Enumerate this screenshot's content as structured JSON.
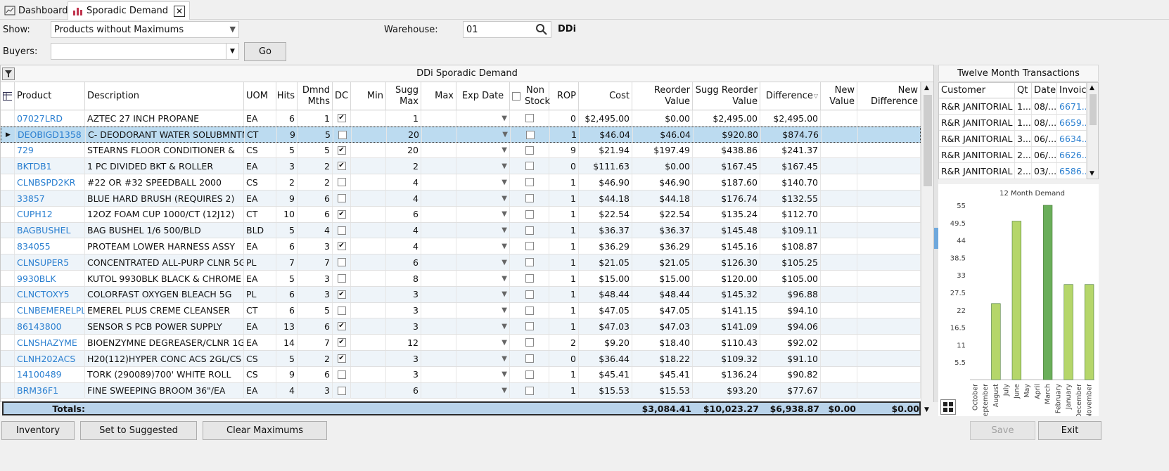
{
  "tabs": [
    {
      "label": "Dashboard",
      "icon": "dashboard-icon"
    },
    {
      "label": "Sporadic Demand",
      "icon": "bar-chart-icon"
    }
  ],
  "filters": {
    "show_label": "Show:",
    "show_value": "Products without Maximums",
    "buyers_label": "Buyers:",
    "buyers_value": "",
    "go_label": "Go",
    "warehouse_label": "Warehouse:",
    "warehouse_value": "01",
    "company": "DDi"
  },
  "grid": {
    "title": "DDi Sporadic Demand",
    "headers": [
      "Product",
      "Description",
      "UOM",
      "Hits",
      "Dmnd Mths",
      "DC",
      "Min",
      "Sugg Max",
      "Max",
      "Exp Date",
      "Non Stock",
      "ROP",
      "Cost",
      "Reorder Value",
      "Sugg Reorder Value",
      "Difference",
      "New Value",
      "New Difference"
    ],
    "rows": [
      {
        "product": "07027LRD",
        "desc": "AZTEC 27 INCH PROPANE",
        "uom": "EA",
        "hits": "6",
        "mths": "1",
        "dc": true,
        "min": "",
        "sugg": "1",
        "max": "",
        "rop": "0",
        "cost": "$2,495.00",
        "reorder": "$0.00",
        "sugg_reorder": "$2,495.00",
        "diff": "$2,495.00"
      },
      {
        "product": "DEOBIGD1358",
        "desc": "C- DEODORANT WATER SOLUBMNTN",
        "uom": "CT",
        "hits": "9",
        "mths": "5",
        "dc": false,
        "min": "",
        "sugg": "20",
        "max": "",
        "rop": "1",
        "cost": "$46.04",
        "reorder": "$46.04",
        "sugg_reorder": "$920.80",
        "diff": "$874.76"
      },
      {
        "product": "729",
        "desc": "STEARNS FLOOR CONDITIONER &",
        "uom": "CS",
        "hits": "5",
        "mths": "5",
        "dc": true,
        "min": "",
        "sugg": "20",
        "max": "",
        "rop": "9",
        "cost": "$21.94",
        "reorder": "$197.49",
        "sugg_reorder": "$438.86",
        "diff": "$241.37"
      },
      {
        "product": "BKTDB1",
        "desc": "1 PC DIVIDED BKT & ROLLER",
        "uom": "EA",
        "hits": "3",
        "mths": "2",
        "dc": true,
        "min": "",
        "sugg": "2",
        "max": "",
        "rop": "0",
        "cost": "$111.63",
        "reorder": "$0.00",
        "sugg_reorder": "$167.45",
        "diff": "$167.45"
      },
      {
        "product": "CLNBSPD2KR",
        "desc": "#22 OR #32 SPEEDBALL 2000",
        "uom": "CS",
        "hits": "2",
        "mths": "2",
        "dc": false,
        "min": "",
        "sugg": "4",
        "max": "",
        "rop": "1",
        "cost": "$46.90",
        "reorder": "$46.90",
        "sugg_reorder": "$187.60",
        "diff": "$140.70"
      },
      {
        "product": "33857",
        "desc": "BLUE HARD BRUSH (REQUIRES 2)",
        "uom": "EA",
        "hits": "9",
        "mths": "6",
        "dc": false,
        "min": "",
        "sugg": "4",
        "max": "",
        "rop": "1",
        "cost": "$44.18",
        "reorder": "$44.18",
        "sugg_reorder": "$176.74",
        "diff": "$132.55"
      },
      {
        "product": "CUPH12",
        "desc": "12OZ FOAM CUP 1000/CT (12J12)",
        "uom": "CT",
        "hits": "10",
        "mths": "6",
        "dc": true,
        "min": "",
        "sugg": "6",
        "max": "",
        "rop": "1",
        "cost": "$22.54",
        "reorder": "$22.54",
        "sugg_reorder": "$135.24",
        "diff": "$112.70"
      },
      {
        "product": "BAGBUSHEL",
        "desc": "BAG BUSHEL 1/6 500/BLD",
        "uom": "BLD",
        "hits": "5",
        "mths": "4",
        "dc": false,
        "min": "",
        "sugg": "4",
        "max": "",
        "rop": "1",
        "cost": "$36.37",
        "reorder": "$36.37",
        "sugg_reorder": "$145.48",
        "diff": "$109.11"
      },
      {
        "product": "834055",
        "desc": "PROTEAM LOWER HARNESS ASSY",
        "uom": "EA",
        "hits": "6",
        "mths": "3",
        "dc": true,
        "min": "",
        "sugg": "4",
        "max": "",
        "rop": "1",
        "cost": "$36.29",
        "reorder": "$36.29",
        "sugg_reorder": "$145.16",
        "diff": "$108.87"
      },
      {
        "product": "CLNSUPER5",
        "desc": "CONCENTRATED ALL-PURP CLNR 5G",
        "uom": "PL",
        "hits": "7",
        "mths": "7",
        "dc": false,
        "min": "",
        "sugg": "6",
        "max": "",
        "rop": "1",
        "cost": "$21.05",
        "reorder": "$21.05",
        "sugg_reorder": "$126.30",
        "diff": "$105.25"
      },
      {
        "product": "9930BLK",
        "desc": "KUTOL 9930BLK BLACK & CHROME",
        "uom": "EA",
        "hits": "5",
        "mths": "3",
        "dc": false,
        "min": "",
        "sugg": "8",
        "max": "",
        "rop": "1",
        "cost": "$15.00",
        "reorder": "$15.00",
        "sugg_reorder": "$120.00",
        "diff": "$105.00"
      },
      {
        "product": "CLNCTOXY5",
        "desc": "COLORFAST OXYGEN BLEACH  5G",
        "uom": "PL",
        "hits": "6",
        "mths": "3",
        "dc": true,
        "min": "",
        "sugg": "3",
        "max": "",
        "rop": "1",
        "cost": "$48.44",
        "reorder": "$48.44",
        "sugg_reorder": "$145.32",
        "diff": "$96.88"
      },
      {
        "product": "CLNBEMERELPL...",
        "desc": "EMEREL PLUS CREME CLEANSER",
        "uom": "CT",
        "hits": "6",
        "mths": "5",
        "dc": false,
        "min": "",
        "sugg": "3",
        "max": "",
        "rop": "1",
        "cost": "$47.05",
        "reorder": "$47.05",
        "sugg_reorder": "$141.15",
        "diff": "$94.10"
      },
      {
        "product": "86143800",
        "desc": "SENSOR S PCB POWER SUPPLY",
        "uom": "EA",
        "hits": "13",
        "mths": "6",
        "dc": true,
        "min": "",
        "sugg": "3",
        "max": "",
        "rop": "1",
        "cost": "$47.03",
        "reorder": "$47.03",
        "sugg_reorder": "$141.09",
        "diff": "$94.06"
      },
      {
        "product": "CLNSHAZYME",
        "desc": "BIOENZYMNE DEGREASER/CLNR 1G",
        "uom": "EA",
        "hits": "14",
        "mths": "7",
        "dc": true,
        "min": "",
        "sugg": "12",
        "max": "",
        "rop": "2",
        "cost": "$9.20",
        "reorder": "$18.40",
        "sugg_reorder": "$110.43",
        "diff": "$92.02"
      },
      {
        "product": "CLNH202ACS",
        "desc": "H20(112)HYPER CONC ACS 2GL/CS",
        "uom": "CS",
        "hits": "5",
        "mths": "2",
        "dc": true,
        "min": "",
        "sugg": "3",
        "max": "",
        "rop": "0",
        "cost": "$36.44",
        "reorder": "$18.22",
        "sugg_reorder": "$109.32",
        "diff": "$91.10"
      },
      {
        "product": "14100489",
        "desc": "TORK (290089)700' WHITE ROLL",
        "uom": "CS",
        "hits": "9",
        "mths": "6",
        "dc": false,
        "min": "",
        "sugg": "3",
        "max": "",
        "rop": "1",
        "cost": "$45.41",
        "reorder": "$45.41",
        "sugg_reorder": "$136.24",
        "diff": "$90.82"
      },
      {
        "product": "BRM36F1",
        "desc": "FINE SWEEPING BROOM 36\"/EA",
        "uom": "EA",
        "hits": "4",
        "mths": "3",
        "dc": false,
        "min": "",
        "sugg": "6",
        "max": "",
        "rop": "1",
        "cost": "$15.53",
        "reorder": "$15.53",
        "sugg_reorder": "$93.20",
        "diff": "$77.67"
      }
    ],
    "totals": {
      "label": "Totals:",
      "reorder": "$3,084.41",
      "sugg_reorder": "$10,023.27",
      "diff": "$6,938.87",
      "new_value": "$0.00",
      "new_diff": "$0.00"
    }
  },
  "transactions": {
    "title": "Twelve Month Transactions",
    "headers": [
      "Customer",
      "Qt",
      "Date",
      "Invoic"
    ],
    "rows": [
      {
        "customer": "R&R JANITORIAL",
        "qty": "1...",
        "date": "08/...",
        "invoice": "6671..."
      },
      {
        "customer": "R&R JANITORIAL",
        "qty": "1...",
        "date": "08/...",
        "invoice": "6659..."
      },
      {
        "customer": "R&R JANITORIAL",
        "qty": "3...",
        "date": "06/...",
        "invoice": "6634..."
      },
      {
        "customer": "R&R JANITORIAL",
        "qty": "2...",
        "date": "06/...",
        "invoice": "6626..."
      },
      {
        "customer": "R&R JANITORIAL",
        "qty": "2...",
        "date": "03/...",
        "invoice": "6586..."
      }
    ]
  },
  "chart_data": {
    "type": "bar",
    "title": "12 Month Demand",
    "categories": [
      "October",
      "September",
      "August",
      "July",
      "June",
      "May",
      "April",
      "March",
      "February",
      "January",
      "December",
      "November"
    ],
    "values": [
      0,
      0,
      24,
      0,
      50,
      0,
      0,
      55,
      0,
      30,
      0,
      30
    ],
    "ylim": [
      0,
      55
    ],
    "yticks": [
      "55",
      "49.5",
      "44",
      "38.5",
      "33",
      "27.5",
      "22",
      "16.5",
      "11",
      "5.5"
    ],
    "colors": {
      "light": "#b5d66a",
      "dark": "#6aae5a"
    }
  },
  "buttons": {
    "inventory": "Inventory",
    "set_suggested": "Set to Suggested",
    "clear_max": "Clear Maximums",
    "save": "Save",
    "exit": "Exit"
  }
}
